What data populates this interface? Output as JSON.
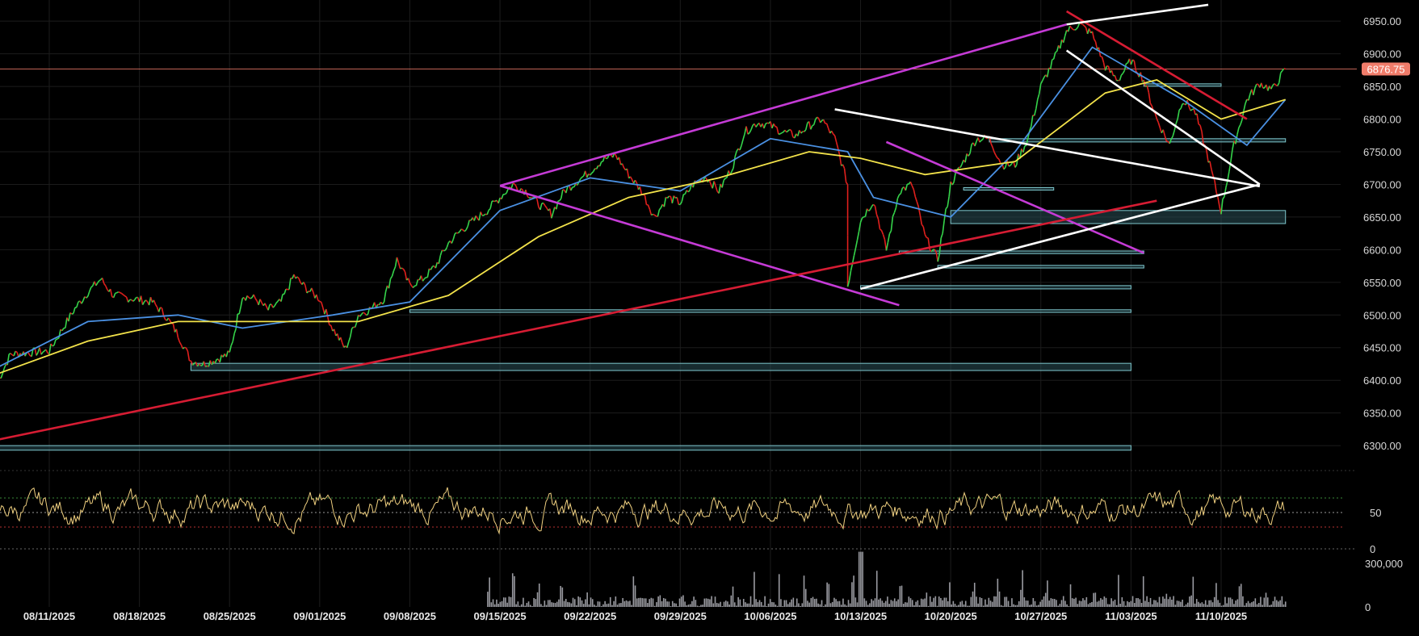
{
  "chart_data": {
    "type": "line",
    "price_axis": {
      "ticks": [
        "6950.00",
        "6900.00",
        "6850.00",
        "6800.00",
        "6750.00",
        "6700.00",
        "6650.00",
        "6600.00",
        "6550.00",
        "6500.00",
        "6450.00",
        "6400.00",
        "6350.00",
        "6300.00"
      ],
      "values": [
        6950,
        6900,
        6850,
        6800,
        6750,
        6700,
        6650,
        6600,
        6550,
        6500,
        6450,
        6400,
        6350,
        6300
      ],
      "ylim": [
        6268,
        6970
      ]
    },
    "last_price": {
      "label": "6876.75",
      "value": 6876.75,
      "color": "#f07c6a"
    },
    "x_axis": {
      "ticks": [
        "08/11/2025",
        "08/18/2025",
        "08/25/2025",
        "09/01/2025",
        "09/08/2025",
        "09/15/2025",
        "09/22/2025",
        "09/29/2025",
        "10/06/2025",
        "10/13/2025",
        "10/20/2025",
        "10/27/2025",
        "11/03/2025",
        "11/10/2025"
      ]
    },
    "price_series": {
      "name": "price",
      "color_up": "#35d44a",
      "color_down": "#e0201d",
      "points": [
        [
          "08/07/2025",
          6398
        ],
        [
          "08/08/2025",
          6440
        ],
        [
          "08/11/2025",
          6445
        ],
        [
          "08/12/2025",
          6478
        ],
        [
          "08/13/2025",
          6510
        ],
        [
          "08/14/2025",
          6535
        ],
        [
          "08/15/2025",
          6555
        ],
        [
          "08/16/2025",
          6530
        ],
        [
          "08/19/2025",
          6520
        ],
        [
          "08/20/2025",
          6500
        ],
        [
          "08/21/2025",
          6470
        ],
        [
          "08/22/2025",
          6430
        ],
        [
          "08/23/2025",
          6425
        ],
        [
          "08/25/2025",
          6440
        ],
        [
          "08/26/2025",
          6530
        ],
        [
          "08/27/2025",
          6525
        ],
        [
          "08/28/2025",
          6508
        ],
        [
          "08/29/2025",
          6520
        ],
        [
          "08/30/2025",
          6560
        ],
        [
          "08/31/2025",
          6540
        ],
        [
          "09/01/2025",
          6525
        ],
        [
          "09/02/2025",
          6480
        ],
        [
          "09/03/2025",
          6448
        ],
        [
          "09/04/2025",
          6500
        ],
        [
          "09/05/2025",
          6510
        ],
        [
          "09/06/2025",
          6525
        ],
        [
          "09/07/2025",
          6585
        ],
        [
          "09/08/2025",
          6545
        ],
        [
          "09/09/2025",
          6555
        ],
        [
          "09/10/2025",
          6575
        ],
        [
          "09/11/2025",
          6610
        ],
        [
          "09/12/2025",
          6630
        ],
        [
          "09/14/2025",
          6660
        ],
        [
          "09/15/2025",
          6680
        ],
        [
          "09/16/2025",
          6700
        ],
        [
          "09/17/2025",
          6690
        ],
        [
          "09/18/2025",
          6670
        ],
        [
          "09/19/2025",
          6655
        ],
        [
          "09/20/2025",
          6690
        ],
        [
          "09/21/2025",
          6705
        ],
        [
          "09/22/2025",
          6720
        ],
        [
          "09/23/2025",
          6738
        ],
        [
          "09/24/2025",
          6745
        ],
        [
          "09/25/2025",
          6715
        ],
        [
          "09/26/2025",
          6690
        ],
        [
          "09/27/2025",
          6650
        ],
        [
          "09/28/2025",
          6680
        ],
        [
          "09/29/2025",
          6672
        ],
        [
          "09/30/2025",
          6700
        ],
        [
          "10/01/2025",
          6712
        ],
        [
          "10/02/2025",
          6690
        ],
        [
          "10/03/2025",
          6725
        ],
        [
          "10/04/2025",
          6780
        ],
        [
          "10/05/2025",
          6795
        ],
        [
          "10/06/2025",
          6790
        ],
        [
          "10/07/2025",
          6780
        ],
        [
          "10/08/2025",
          6775
        ],
        [
          "10/09/2025",
          6790
        ],
        [
          "10/10/2025",
          6800
        ],
        [
          "10/11/2025",
          6770
        ],
        [
          "10/12/2025",
          6700
        ],
        [
          "10/12/2025",
          6545
        ],
        [
          "10/13/2025",
          6645
        ],
        [
          "10/14/2025",
          6675
        ],
        [
          "10/15/2025",
          6600
        ],
        [
          "10/16/2025",
          6690
        ],
        [
          "10/17/2025",
          6700
        ],
        [
          "10/18/2025",
          6620
        ],
        [
          "10/19/2025",
          6585
        ],
        [
          "10/20/2025",
          6700
        ],
        [
          "10/21/2025",
          6735
        ],
        [
          "10/22/2025",
          6770
        ],
        [
          "10/23/2025",
          6770
        ],
        [
          "10/24/2025",
          6730
        ],
        [
          "10/25/2025",
          6730
        ],
        [
          "10/26/2025",
          6770
        ],
        [
          "10/27/2025",
          6850
        ],
        [
          "10/28/2025",
          6890
        ],
        [
          "10/29/2025",
          6935
        ],
        [
          "10/30/2025",
          6945
        ],
        [
          "10/31/2025",
          6930
        ],
        [
          "11/01/2025",
          6880
        ],
        [
          "11/02/2025",
          6860
        ],
        [
          "11/03/2025",
          6890
        ],
        [
          "11/04/2025",
          6860
        ],
        [
          "11/05/2025",
          6800
        ],
        [
          "11/06/2025",
          6760
        ],
        [
          "11/07/2025",
          6830
        ],
        [
          "11/08/2025",
          6810
        ],
        [
          "11/09/2025",
          6740
        ],
        [
          "11/10/2025",
          6660
        ],
        [
          "11/11/2025",
          6760
        ],
        [
          "11/12/2025",
          6830
        ],
        [
          "11/13/2025",
          6855
        ],
        [
          "11/14/2025",
          6845
        ],
        [
          "11/15/2025",
          6876.75
        ]
      ]
    },
    "moving_averages": [
      {
        "color": "#4a90e2",
        "points": [
          [
            "08/07/2025",
            6420
          ],
          [
            "08/14/2025",
            6490
          ],
          [
            "08/21/2025",
            6500
          ],
          [
            "08/26/2025",
            6480
          ],
          [
            "09/02/2025",
            6500
          ],
          [
            "09/08/2025",
            6520
          ],
          [
            "09/15/2025",
            6660
          ],
          [
            "09/22/2025",
            6710
          ],
          [
            "09/29/2025",
            6690
          ],
          [
            "10/06/2025",
            6770
          ],
          [
            "10/12/2025",
            6750
          ],
          [
            "10/14/2025",
            6680
          ],
          [
            "10/20/2025",
            6650
          ],
          [
            "10/25/2025",
            6750
          ],
          [
            "10/31/2025",
            6910
          ],
          [
            "11/07/2025",
            6830
          ],
          [
            "11/12/2025",
            6760
          ],
          [
            "11/15/2025",
            6830
          ]
        ]
      },
      {
        "color": "#f2e24a",
        "points": [
          [
            "08/07/2025",
            6410
          ],
          [
            "08/14/2025",
            6460
          ],
          [
            "08/21/2025",
            6490
          ],
          [
            "08/28/2025",
            6490
          ],
          [
            "09/04/2025",
            6490
          ],
          [
            "09/11/2025",
            6530
          ],
          [
            "09/18/2025",
            6620
          ],
          [
            "09/25/2025",
            6680
          ],
          [
            "10/02/2025",
            6710
          ],
          [
            "10/09/2025",
            6750
          ],
          [
            "10/13/2025",
            6740
          ],
          [
            "10/18/2025",
            6715
          ],
          [
            "10/25/2025",
            6735
          ],
          [
            "11/01/2025",
            6840
          ],
          [
            "11/05/2025",
            6860
          ],
          [
            "11/10/2025",
            6800
          ],
          [
            "11/15/2025",
            6830
          ]
        ]
      }
    ],
    "horizontal_zones": [
      {
        "from": "08/22/2025",
        "to": "11/03/2025",
        "low": 6415,
        "high": 6426
      },
      {
        "from": "08/07/2025",
        "to": "11/03/2025",
        "low": 6293,
        "high": 6300
      },
      {
        "from": "09/08/2025",
        "to": "11/03/2025",
        "low": 6504,
        "high": 6508
      },
      {
        "from": "10/13/2025",
        "to": "11/03/2025",
        "low": 6540,
        "high": 6545
      },
      {
        "from": "10/16/2025",
        "to": "11/04/2025",
        "low": 6594,
        "high": 6598
      },
      {
        "from": "10/19/2025",
        "to": "11/04/2025",
        "low": 6572,
        "high": 6576
      },
      {
        "from": "10/20/2025",
        "to": "11/15/2025",
        "low": 6640,
        "high": 6660
      },
      {
        "from": "10/23/2025",
        "to": "11/15/2025",
        "low": 6765,
        "high": 6770
      },
      {
        "from": "10/21/2025",
        "to": "10/28/2025",
        "low": 6692,
        "high": 6695
      },
      {
        "from": "11/04/2025",
        "to": "11/10/2025",
        "low": 6851,
        "high": 6854
      }
    ],
    "trendlines": [
      {
        "color": "#c53bd6",
        "from": [
          "09/15/2025",
          6698
        ],
        "to": [
          "10/29/2025",
          6945
        ]
      },
      {
        "color": "#c53bd6",
        "from": [
          "09/15/2025",
          6698
        ],
        "to": [
          "10/16/2025",
          6515
        ]
      },
      {
        "color": "#c53bd6",
        "from": [
          "10/15/2025",
          6765
        ],
        "to": [
          "11/04/2025",
          6595
        ]
      },
      {
        "color": "#d61c33",
        "from": [
          "08/06/2025",
          6305
        ],
        "to": [
          "11/05/2025",
          6675
        ]
      },
      {
        "color": "#d61c33",
        "from": [
          "10/29/2025",
          6965
        ],
        "to": [
          "11/12/2025",
          6800
        ]
      },
      {
        "color": "#ffffff",
        "from": [
          "10/11/2025",
          6815
        ],
        "to": [
          "11/13/2025",
          6697
        ]
      },
      {
        "color": "#ffffff",
        "from": [
          "10/13/2025",
          6540
        ],
        "to": [
          "11/13/2025",
          6700
        ]
      },
      {
        "color": "#ffffff",
        "from": [
          "10/29/2025",
          6905
        ],
        "to": [
          "11/13/2025",
          6700
        ]
      },
      {
        "color": "#ffffff",
        "from": [
          "10/29/2025",
          6945
        ],
        "to": [
          "11/09/2025",
          6975
        ]
      }
    ],
    "oscillator": {
      "ticks": [
        "50",
        "0"
      ],
      "values": [
        50,
        0
      ],
      "ylim": [
        0,
        100
      ],
      "levels": [
        {
          "value": 70,
          "color": "#3a8a3a"
        },
        {
          "value": 50,
          "color": "#9a9a9a"
        },
        {
          "value": 30,
          "color": "#b83232"
        }
      ],
      "color": "#f0d080"
    },
    "volume": {
      "ticks": [
        "300,000",
        "0"
      ],
      "values": [
        300000,
        0
      ],
      "ylim": [
        0,
        400000
      ],
      "color": "#9a9ba1"
    }
  }
}
